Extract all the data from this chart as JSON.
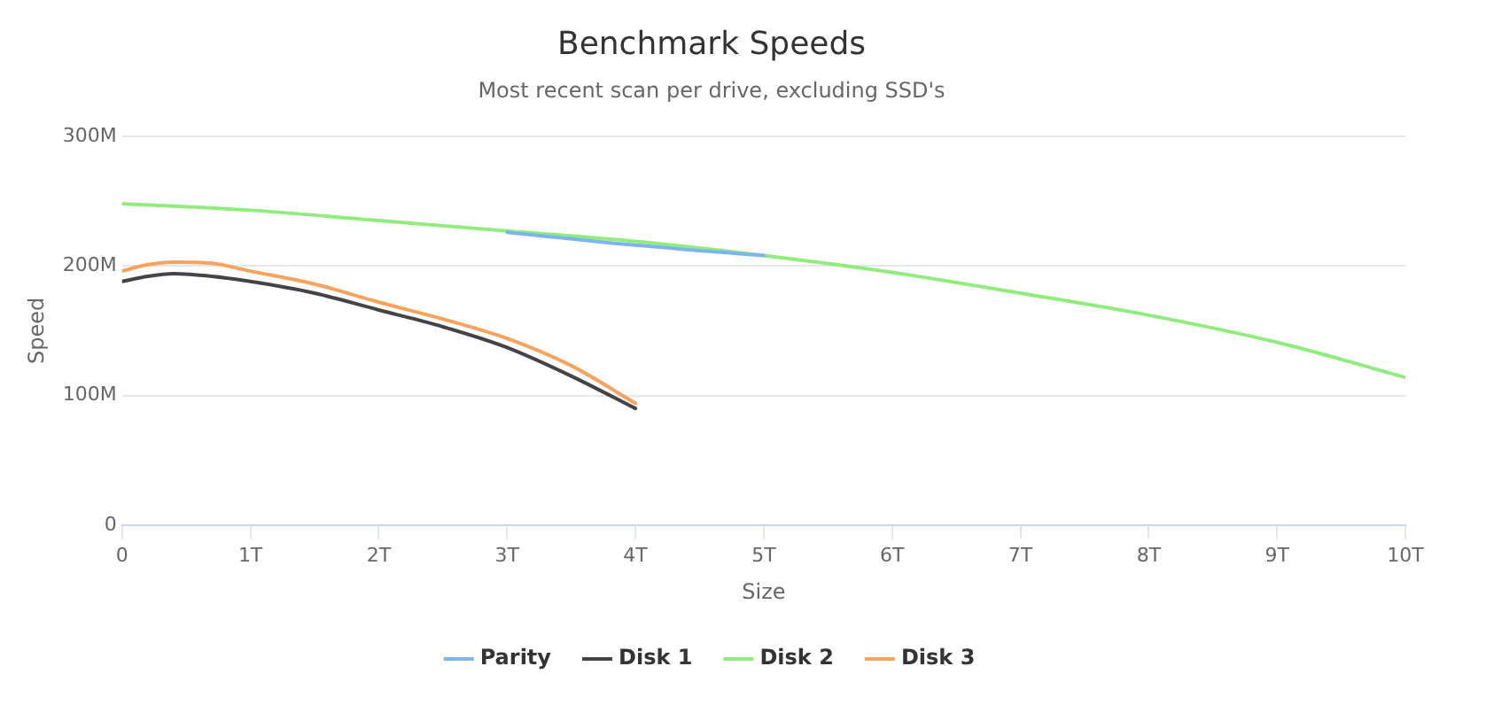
{
  "chart_data": {
    "type": "line",
    "title": "Benchmark Speeds",
    "subtitle": "Most recent scan per drive, excluding SSD's",
    "xlabel": "Size",
    "ylabel": "Speed",
    "xlim": [
      0,
      10
    ],
    "xticks": [
      0,
      {
        "value": 1,
        "label": "1T"
      },
      {
        "value": 2,
        "label": "2T"
      },
      {
        "value": 3,
        "label": "3T"
      },
      {
        "value": 4,
        "label": "4T"
      },
      {
        "value": 5,
        "label": "5T"
      },
      {
        "value": 6,
        "label": "6T"
      },
      {
        "value": 7,
        "label": "7T"
      },
      {
        "value": 8,
        "label": "8T"
      },
      {
        "value": 9,
        "label": "9T"
      },
      {
        "value": 10,
        "label": "10T"
      }
    ],
    "ylim": [
      0,
      300
    ],
    "yticks": [
      0,
      {
        "value": 100,
        "label": "100M"
      },
      {
        "value": 200,
        "label": "200M"
      },
      {
        "value": 300,
        "label": "300M"
      }
    ],
    "grid": "y",
    "legend": "bottom",
    "marker": "none",
    "line_style": "solid",
    "series": [
      {
        "name": "Parity",
        "color": "#7cb5ec",
        "x": [
          3,
          4,
          5
        ],
        "values": [
          226,
          216,
          208
        ]
      },
      {
        "name": "Disk 1",
        "color": "#434348",
        "x": [
          0,
          0.2,
          0.4,
          0.7,
          1,
          1.5,
          2,
          2.5,
          3,
          3.5,
          4
        ],
        "values": [
          188,
          192,
          194,
          192,
          188,
          179,
          166,
          153,
          137,
          115,
          90
        ]
      },
      {
        "name": "Disk 2",
        "color": "#90ed7d",
        "x": [
          0,
          1,
          2,
          3,
          4,
          5,
          6,
          7,
          8,
          9,
          10
        ],
        "values": [
          248,
          243,
          235,
          227,
          219,
          208,
          195,
          179,
          162,
          141,
          114
        ]
      },
      {
        "name": "Disk 3",
        "color": "#f7a35c",
        "x": [
          0,
          0.2,
          0.4,
          0.7,
          1,
          1.5,
          2,
          2.5,
          3,
          3.5,
          4
        ],
        "values": [
          196,
          201,
          203,
          202,
          196,
          186,
          172,
          159,
          144,
          123,
          94
        ]
      }
    ]
  }
}
